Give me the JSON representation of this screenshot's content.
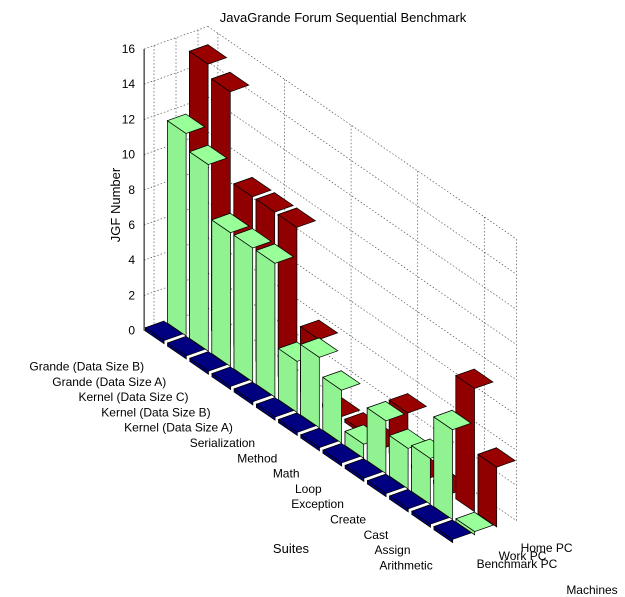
{
  "chart_data": {
    "type": "bar",
    "style": "3d-bar",
    "title": "JavaGrande Forum Sequential Benchmark",
    "zlabel": "JGF Number",
    "xlabel": "Suites",
    "ylabel": "Machines",
    "zlim": [
      0,
      16
    ],
    "zticks": [
      0,
      2,
      4,
      6,
      8,
      10,
      12,
      14,
      16
    ],
    "grid": true,
    "categories": [
      "Grande (Data Size B)",
      "Grande (Data Size A)",
      "Kernel (Data Size C)",
      "Kernel (Data Size B)",
      "Kernel (Data Size A)",
      "Serialization",
      "Method",
      "Math",
      "Loop",
      "Exception",
      "Create",
      "Cast",
      "Assign",
      "Arithmetic"
    ],
    "series": [
      {
        "name": "Benchmark PC",
        "color": "#000080",
        "values": [
          0,
          0,
          0,
          0,
          0,
          0,
          0,
          0,
          0,
          0,
          0,
          0,
          0,
          0
        ]
      },
      {
        "name": "Work PC",
        "color": "#99ff99",
        "values": [
          11.5,
          10.6,
          7.6,
          7.6,
          7.6,
          2.9,
          4.0,
          3.0,
          0.8,
          3.0,
          2.3,
          2.6,
          5.1,
          0
        ]
      },
      {
        "name": "Home PC",
        "color": "#990000",
        "values": [
          15.0,
          14.3,
          9.2,
          9.2,
          9.2,
          3.7,
          0,
          0,
          0,
          3.0,
          0,
          0,
          7.0,
          3.4
        ]
      }
    ]
  }
}
